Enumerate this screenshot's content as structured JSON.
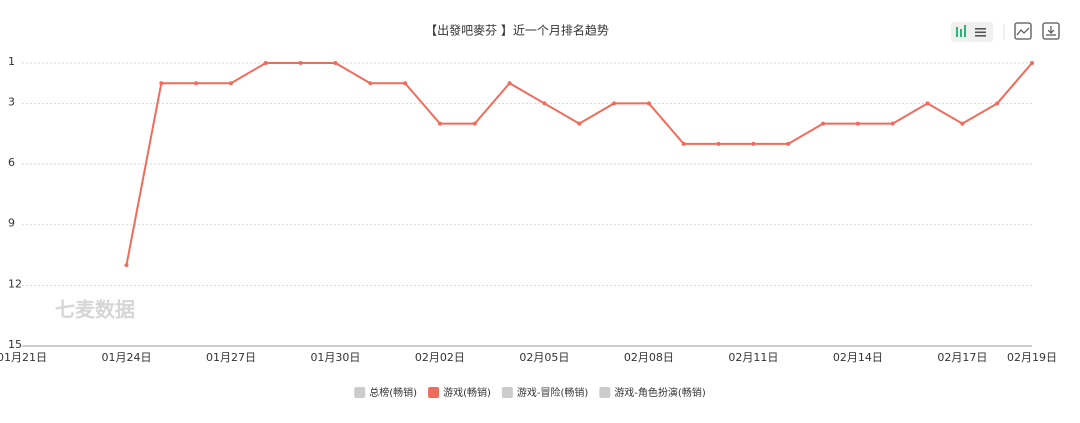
{
  "chart_data": {
    "type": "line",
    "title": "【出發吧麥芬 】近一个月排名趋势",
    "watermark": "七麦数据",
    "categories": [
      "01月21日",
      null,
      null,
      "01月24日",
      null,
      null,
      "01月27日",
      null,
      null,
      "01月30日",
      null,
      null,
      "02月02日",
      null,
      null,
      "02月05日",
      null,
      null,
      "02月08日",
      null,
      null,
      "02月11日",
      null,
      null,
      "02月14日",
      null,
      null,
      "02月17日",
      null,
      "02月19日"
    ],
    "series": [
      {
        "name": "游戏(畅销)",
        "color": "#ef6c5c",
        "values": [
          null,
          null,
          null,
          11,
          2,
          2,
          2,
          1,
          1,
          1,
          2,
          2,
          4,
          4,
          2,
          3,
          4,
          3,
          3,
          5,
          5,
          5,
          5,
          4,
          4,
          4,
          3,
          4,
          3,
          1
        ]
      }
    ],
    "inactive_series": [
      {
        "name": "总榜(畅销)",
        "color": "#cccccc"
      },
      {
        "name": "游戏-冒险(畅销)",
        "color": "#cccccc"
      },
      {
        "name": "游戏-角色扮演(畅销)",
        "color": "#cccccc"
      }
    ],
    "ylim": [
      1,
      15
    ],
    "yticks": [
      1,
      3,
      6,
      9,
      12,
      15
    ],
    "y_inverted": true,
    "grid": true
  }
}
